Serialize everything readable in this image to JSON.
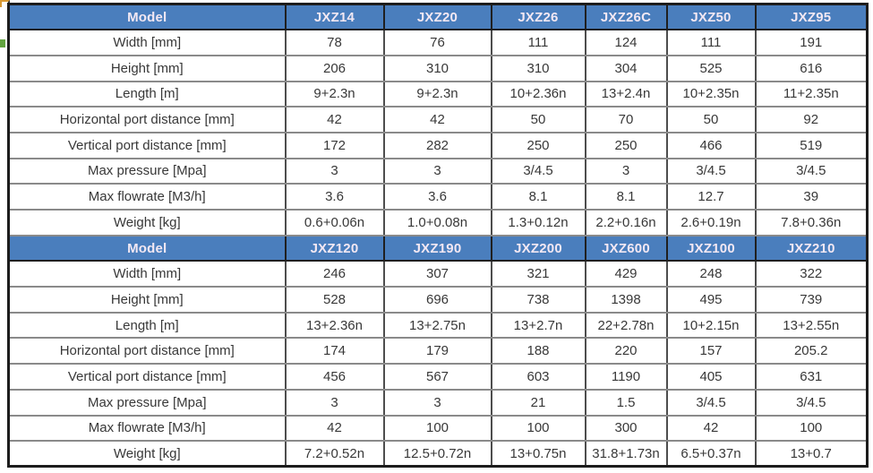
{
  "colors": {
    "header_bg": "#4a7ebd",
    "header_text": "#f3e8f3",
    "body_text": "#383838",
    "inner_border": "#8a8a8a",
    "outer_border": "#1c1c1c",
    "green_marker": "#61a33e",
    "orange_marker": "#d99a34"
  },
  "table": {
    "sections": [
      {
        "header_label": "Model",
        "models": [
          "JXZ14",
          "JXZ20",
          "JXZ26",
          "JXZ26C",
          "JXZ50",
          "JXZ95"
        ],
        "rows": [
          {
            "label": "Width [mm]",
            "values": [
              "78",
              "76",
              "111",
              "124",
              "111",
              "191"
            ]
          },
          {
            "label": "Height [mm]",
            "values": [
              "206",
              "310",
              "310",
              "304",
              "525",
              "616"
            ]
          },
          {
            "label": "Length [m]",
            "values": [
              "9+2.3n",
              "9+2.3n",
              "10+2.36n",
              "13+2.4n",
              "10+2.35n",
              "11+2.35n"
            ]
          },
          {
            "label": "Horizontal port distance [mm]",
            "values": [
              "42",
              "42",
              "50",
              "70",
              "50",
              "92"
            ]
          },
          {
            "label": "Vertical port distance  [mm]",
            "values": [
              "172",
              "282",
              "250",
              "250",
              "466",
              "519"
            ]
          },
          {
            "label": "Max pressure [Mpa]",
            "values": [
              "3",
              "3",
              "3/4.5",
              "3",
              "3/4.5",
              "3/4.5"
            ]
          },
          {
            "label": "Max flowrate  [M3/h]",
            "values": [
              "3.6",
              "3.6",
              "8.1",
              "8.1",
              "12.7",
              "39"
            ]
          },
          {
            "label": "Weight [kg]",
            "values": [
              "0.6+0.06n",
              "1.0+0.08n",
              "1.3+0.12n",
              "2.2+0.16n",
              "2.6+0.19n",
              "7.8+0.36n"
            ]
          }
        ]
      },
      {
        "header_label": "Model",
        "models": [
          "JXZ120",
          "JXZ190",
          "JXZ200",
          "JXZ600",
          "JXZ100",
          "JXZ210"
        ],
        "rows": [
          {
            "label": "Width [mm]",
            "values": [
              "246",
              "307",
              "321",
              "429",
              "248",
              "322"
            ]
          },
          {
            "label": "Height [mm]",
            "values": [
              "528",
              "696",
              "738",
              "1398",
              "495",
              "739"
            ]
          },
          {
            "label": "Length [m]",
            "values": [
              "13+2.36n",
              "13+2.75n",
              "13+2.7n",
              "22+2.78n",
              "10+2.15n",
              "13+2.55n"
            ]
          },
          {
            "label": "Horizontal port distance [mm]",
            "values": [
              "174",
              "179",
              "188",
              "220",
              "157",
              "205.2"
            ]
          },
          {
            "label": "Vertical port distance  [mm]",
            "values": [
              "456",
              "567",
              "603",
              "1190",
              "405",
              "631"
            ]
          },
          {
            "label": "Max pressure [Mpa]",
            "values": [
              "3",
              "3",
              "21",
              "1.5",
              "3/4.5",
              "3/4.5"
            ]
          },
          {
            "label": "Max flowrate  [M3/h]",
            "values": [
              "42",
              "100",
              "100",
              "300",
              "42",
              "100"
            ]
          },
          {
            "label": "Weight [kg]",
            "values": [
              "7.2+0.52n",
              "12.5+0.72n",
              "13+0.75n",
              "31.8+1.73n",
              "6.5+0.37n",
              "13+0.7"
            ]
          }
        ]
      }
    ]
  }
}
